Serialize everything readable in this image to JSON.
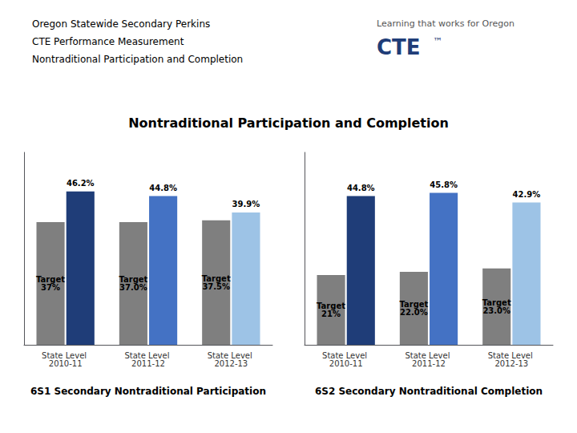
{
  "chart_data": {
    "type": "bar",
    "title": "Nontraditional Participation and Completion",
    "annotations": [
      "Oregon Statewide Secondary Perkins",
      "CTE Performance Measurement",
      "Nontraditional Participation and Completion",
      "Learning that works for Oregon",
      "CTE",
      "™"
    ],
    "groups": [
      {
        "label": "6S1 Secondary Nontraditional Participation",
        "categories": [
          "State Level 2010-11",
          "State Level 2011-12",
          "State Level 2012-13"
        ],
        "series": [
          {
            "color": "#7f7f7f",
            "values": [
              37.0,
              37.0,
              37.5
            ],
            "value_labels": [
              "Target\n37%",
              "Target\n37.0%",
              "Target\n37.5%"
            ]
          },
          {
            "colors": [
              "#1f3d78",
              "#4472c4",
              "#9dc3e6"
            ],
            "values": [
              46.2,
              44.8,
              39.9
            ],
            "value_labels": [
              "46.2%",
              "44.8%",
              "39.9%"
            ]
          }
        ]
      },
      {
        "label": "6S2 Secondary Nontraditional Completion",
        "categories": [
          "State Level 2010-11",
          "State Level 2011-12",
          "State Level 2012-13"
        ],
        "series": [
          {
            "color": "#7f7f7f",
            "values": [
              21.0,
              22.0,
              23.0
            ],
            "value_labels": [
              "Target\n21%",
              "Target\n22.0%",
              "Target\n23.0%"
            ]
          },
          {
            "colors": [
              "#1f3d78",
              "#4472c4",
              "#9dc3e6"
            ],
            "values": [
              44.8,
              45.8,
              42.9
            ],
            "value_labels": [
              "44.8%",
              "45.8%",
              "42.9%"
            ]
          }
        ]
      }
    ],
    "ylim": [
      0,
      58
    ],
    "data_labels": true,
    "tick_labels": "x",
    "grid": false
  }
}
